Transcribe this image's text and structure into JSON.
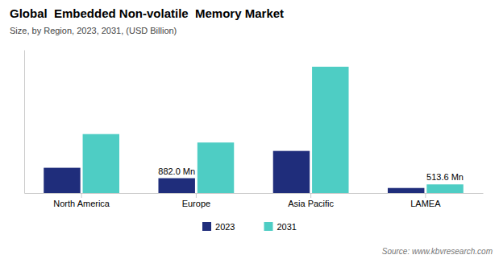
{
  "chart_data": {
    "type": "bar",
    "title": "Global  Embedded Non-volatile  Memory Market",
    "subtitle": "Size, by Region, 2023, 2031, (USD Billion)",
    "categories": [
      "North America",
      "Europe",
      "Asia Pacific",
      "LAMEA"
    ],
    "series": [
      {
        "name": "2023",
        "color": "#1f2d7b",
        "values": [
          1.5,
          0.882,
          2.5,
          0.3
        ]
      },
      {
        "name": "2031",
        "color": "#4ecdc4",
        "values": [
          3.5,
          3.0,
          7.5,
          0.5136
        ]
      }
    ],
    "ylim": [
      0,
      8.5
    ],
    "tick_labels": "x",
    "legend": "bottom",
    "annotations": [
      {
        "text": "882.0 Mn",
        "category": "Europe",
        "series": "2023"
      },
      {
        "text": "513.6 Mn",
        "category": "LAMEA",
        "series": "2031"
      }
    ],
    "source": "Source: www.kbvresearch.com"
  }
}
